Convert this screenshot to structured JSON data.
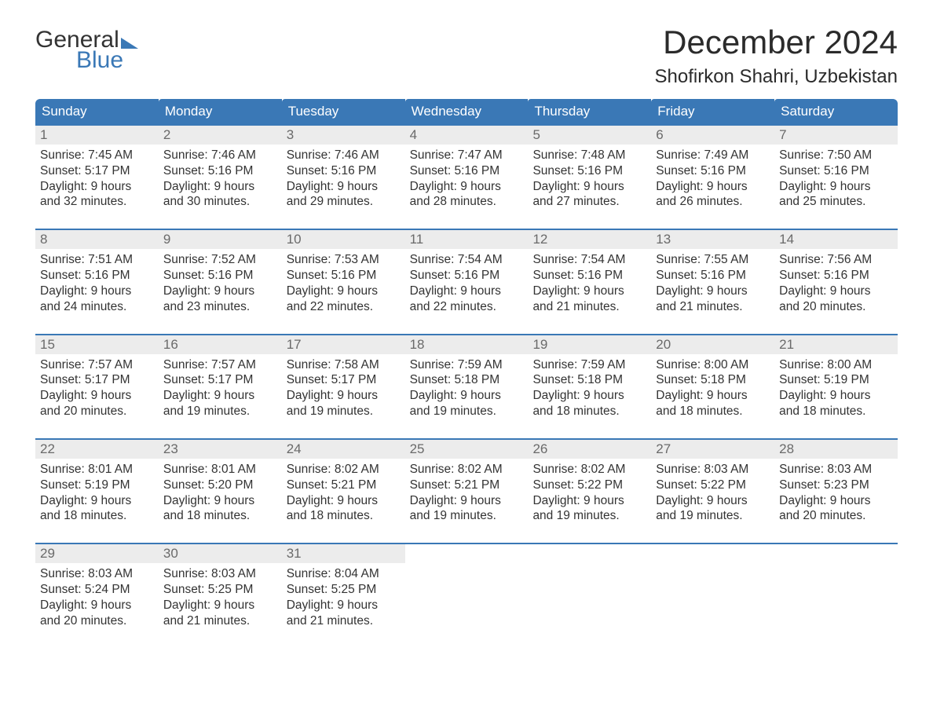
{
  "brand": {
    "word1": "General",
    "word2": "Blue",
    "accent_color": "#3a78b6"
  },
  "title": "December 2024",
  "location": "Shofirkon Shahri, Uzbekistan",
  "colors": {
    "header_bg": "#3a78b6",
    "header_text": "#ffffff",
    "daynum_bg": "#ececec",
    "daynum_text": "#6a6a6a",
    "body_text": "#333333",
    "page_bg": "#ffffff",
    "week_rule": "#3a78b6"
  },
  "typography": {
    "title_fontsize_pt": 32,
    "location_fontsize_pt": 18,
    "dow_fontsize_pt": 13,
    "body_fontsize_pt": 12
  },
  "days_of_week": [
    "Sunday",
    "Monday",
    "Tuesday",
    "Wednesday",
    "Thursday",
    "Friday",
    "Saturday"
  ],
  "labels": {
    "sunrise": "Sunrise:",
    "sunset": "Sunset:",
    "daylight": "Daylight:"
  },
  "weeks": [
    [
      {
        "n": "1",
        "sunrise": "7:45 AM",
        "sunset": "5:17 PM",
        "dl1": "9 hours",
        "dl2": "and 32 minutes."
      },
      {
        "n": "2",
        "sunrise": "7:46 AM",
        "sunset": "5:16 PM",
        "dl1": "9 hours",
        "dl2": "and 30 minutes."
      },
      {
        "n": "3",
        "sunrise": "7:46 AM",
        "sunset": "5:16 PM",
        "dl1": "9 hours",
        "dl2": "and 29 minutes."
      },
      {
        "n": "4",
        "sunrise": "7:47 AM",
        "sunset": "5:16 PM",
        "dl1": "9 hours",
        "dl2": "and 28 minutes."
      },
      {
        "n": "5",
        "sunrise": "7:48 AM",
        "sunset": "5:16 PM",
        "dl1": "9 hours",
        "dl2": "and 27 minutes."
      },
      {
        "n": "6",
        "sunrise": "7:49 AM",
        "sunset": "5:16 PM",
        "dl1": "9 hours",
        "dl2": "and 26 minutes."
      },
      {
        "n": "7",
        "sunrise": "7:50 AM",
        "sunset": "5:16 PM",
        "dl1": "9 hours",
        "dl2": "and 25 minutes."
      }
    ],
    [
      {
        "n": "8",
        "sunrise": "7:51 AM",
        "sunset": "5:16 PM",
        "dl1": "9 hours",
        "dl2": "and 24 minutes."
      },
      {
        "n": "9",
        "sunrise": "7:52 AM",
        "sunset": "5:16 PM",
        "dl1": "9 hours",
        "dl2": "and 23 minutes."
      },
      {
        "n": "10",
        "sunrise": "7:53 AM",
        "sunset": "5:16 PM",
        "dl1": "9 hours",
        "dl2": "and 22 minutes."
      },
      {
        "n": "11",
        "sunrise": "7:54 AM",
        "sunset": "5:16 PM",
        "dl1": "9 hours",
        "dl2": "and 22 minutes."
      },
      {
        "n": "12",
        "sunrise": "7:54 AM",
        "sunset": "5:16 PM",
        "dl1": "9 hours",
        "dl2": "and 21 minutes."
      },
      {
        "n": "13",
        "sunrise": "7:55 AM",
        "sunset": "5:16 PM",
        "dl1": "9 hours",
        "dl2": "and 21 minutes."
      },
      {
        "n": "14",
        "sunrise": "7:56 AM",
        "sunset": "5:16 PM",
        "dl1": "9 hours",
        "dl2": "and 20 minutes."
      }
    ],
    [
      {
        "n": "15",
        "sunrise": "7:57 AM",
        "sunset": "5:17 PM",
        "dl1": "9 hours",
        "dl2": "and 20 minutes."
      },
      {
        "n": "16",
        "sunrise": "7:57 AM",
        "sunset": "5:17 PM",
        "dl1": "9 hours",
        "dl2": "and 19 minutes."
      },
      {
        "n": "17",
        "sunrise": "7:58 AM",
        "sunset": "5:17 PM",
        "dl1": "9 hours",
        "dl2": "and 19 minutes."
      },
      {
        "n": "18",
        "sunrise": "7:59 AM",
        "sunset": "5:18 PM",
        "dl1": "9 hours",
        "dl2": "and 19 minutes."
      },
      {
        "n": "19",
        "sunrise": "7:59 AM",
        "sunset": "5:18 PM",
        "dl1": "9 hours",
        "dl2": "and 18 minutes."
      },
      {
        "n": "20",
        "sunrise": "8:00 AM",
        "sunset": "5:18 PM",
        "dl1": "9 hours",
        "dl2": "and 18 minutes."
      },
      {
        "n": "21",
        "sunrise": "8:00 AM",
        "sunset": "5:19 PM",
        "dl1": "9 hours",
        "dl2": "and 18 minutes."
      }
    ],
    [
      {
        "n": "22",
        "sunrise": "8:01 AM",
        "sunset": "5:19 PM",
        "dl1": "9 hours",
        "dl2": "and 18 minutes."
      },
      {
        "n": "23",
        "sunrise": "8:01 AM",
        "sunset": "5:20 PM",
        "dl1": "9 hours",
        "dl2": "and 18 minutes."
      },
      {
        "n": "24",
        "sunrise": "8:02 AM",
        "sunset": "5:21 PM",
        "dl1": "9 hours",
        "dl2": "and 18 minutes."
      },
      {
        "n": "25",
        "sunrise": "8:02 AM",
        "sunset": "5:21 PM",
        "dl1": "9 hours",
        "dl2": "and 19 minutes."
      },
      {
        "n": "26",
        "sunrise": "8:02 AM",
        "sunset": "5:22 PM",
        "dl1": "9 hours",
        "dl2": "and 19 minutes."
      },
      {
        "n": "27",
        "sunrise": "8:03 AM",
        "sunset": "5:22 PM",
        "dl1": "9 hours",
        "dl2": "and 19 minutes."
      },
      {
        "n": "28",
        "sunrise": "8:03 AM",
        "sunset": "5:23 PM",
        "dl1": "9 hours",
        "dl2": "and 20 minutes."
      }
    ],
    [
      {
        "n": "29",
        "sunrise": "8:03 AM",
        "sunset": "5:24 PM",
        "dl1": "9 hours",
        "dl2": "and 20 minutes."
      },
      {
        "n": "30",
        "sunrise": "8:03 AM",
        "sunset": "5:25 PM",
        "dl1": "9 hours",
        "dl2": "and 21 minutes."
      },
      {
        "n": "31",
        "sunrise": "8:04 AM",
        "sunset": "5:25 PM",
        "dl1": "9 hours",
        "dl2": "and 21 minutes."
      },
      null,
      null,
      null,
      null
    ]
  ]
}
